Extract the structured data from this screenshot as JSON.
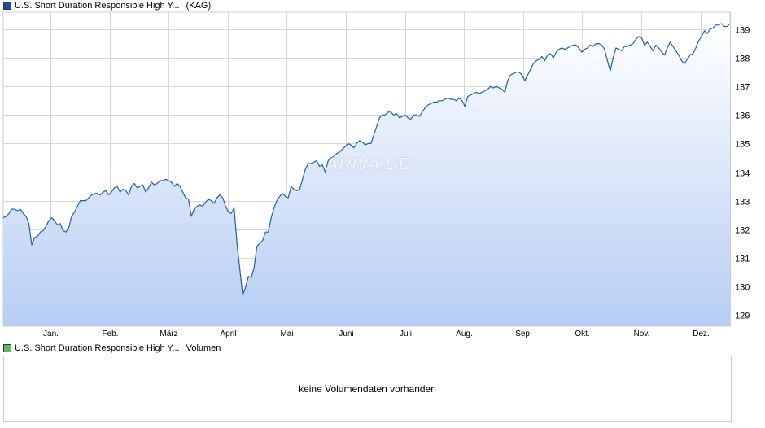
{
  "legend_price": {
    "name": "U.S. Short Duration Responsible High Y...",
    "suffix": "(KAG)",
    "color": "#1f4e9c"
  },
  "legend_volume": {
    "name": "U.S. Short Duration Responsible High Y...",
    "suffix": "Volumen",
    "color": "#5cb85c"
  },
  "volume_message": "keine Volumendaten vorhanden",
  "watermark": "ARIVA.DE",
  "colors": {
    "line": "#1f5fb0",
    "fill_top": "#ffffff",
    "fill_bottom": "#b7cdf3",
    "grid": "#d8d8d8"
  },
  "chart_data": {
    "type": "area",
    "title": "",
    "xlabel": "",
    "ylabel": "",
    "x_labels": [
      "Jan.",
      "Feb.",
      "März",
      "April",
      "Mai",
      "Juni",
      "Juli",
      "Aug.",
      "Sep.",
      "Okt.",
      "Nov.",
      "Dez."
    ],
    "y_ticks": [
      129,
      130,
      131,
      132,
      133,
      134,
      135,
      136,
      137,
      138,
      139
    ],
    "ylim": [
      128.6,
      139.6
    ],
    "grid": true,
    "y_axis_side": "right",
    "series": [
      {
        "values": [
          132.4,
          132.45,
          132.55,
          132.7,
          132.7,
          132.65,
          132.7,
          132.55,
          132.45,
          132.2,
          131.45,
          131.7,
          131.75,
          131.9,
          131.95,
          132.1,
          132.3,
          132.4,
          132.3,
          132.15,
          132.2,
          131.95,
          131.9,
          132.05,
          132.45,
          132.6,
          132.8,
          133.0,
          133.0,
          133.0,
          133.1,
          133.2,
          133.25,
          133.25,
          133.2,
          133.3,
          133.35,
          133.2,
          133.3,
          133.45,
          133.5,
          133.3,
          133.4,
          133.35,
          133.2,
          133.5,
          133.6,
          133.45,
          133.5,
          133.55,
          133.3,
          133.45,
          133.65,
          133.55,
          133.6,
          133.7,
          133.7,
          133.75,
          133.7,
          133.65,
          133.5,
          133.6,
          133.5,
          133.3,
          133.1,
          133.05,
          132.45,
          132.7,
          132.8,
          132.85,
          132.8,
          132.95,
          133.05,
          133.0,
          132.9,
          133.1,
          133.2,
          133.1,
          132.8,
          132.6,
          132.55,
          132.75,
          131.5,
          130.6,
          129.7,
          129.95,
          130.35,
          130.3,
          130.65,
          131.4,
          131.5,
          131.6,
          131.9,
          131.9,
          132.4,
          132.75,
          133.0,
          133.15,
          133.25,
          133.15,
          133.1,
          133.5,
          133.4,
          133.35,
          133.4,
          133.75,
          134.1,
          134.3,
          134.3,
          134.35,
          134.4,
          134.2,
          134.25,
          134.0,
          134.4,
          134.5,
          134.55,
          134.65,
          134.7,
          134.8,
          134.9,
          135.0,
          134.95,
          134.85,
          135.0,
          135.1,
          135.05,
          134.95,
          135.0,
          135.0,
          135.3,
          135.6,
          135.9,
          136.0,
          136.0,
          136.1,
          136.1,
          136.0,
          136.05,
          135.9,
          135.95,
          136.0,
          135.9,
          135.85,
          136.0,
          136.0,
          135.95,
          136.1,
          136.25,
          136.35,
          136.4,
          136.45,
          136.45,
          136.5,
          136.5,
          136.55,
          136.6,
          136.55,
          136.55,
          136.5,
          136.6,
          136.5,
          136.3,
          136.65,
          136.7,
          136.75,
          136.8,
          136.75,
          136.8,
          136.85,
          136.9,
          137.0,
          136.95,
          137.0,
          136.95,
          136.9,
          136.8,
          137.2,
          137.4,
          137.45,
          137.5,
          137.5,
          137.4,
          137.2,
          137.4,
          137.6,
          137.8,
          137.9,
          137.95,
          138.05,
          137.9,
          138.1,
          138.15,
          138.0,
          138.2,
          138.3,
          138.35,
          138.3,
          138.35,
          138.4,
          138.45,
          138.45,
          138.35,
          138.2,
          138.3,
          138.35,
          138.45,
          138.4,
          138.5,
          138.5,
          138.45,
          138.3,
          137.9,
          137.55,
          138.0,
          138.35,
          138.3,
          138.25,
          138.4,
          138.4,
          138.45,
          138.5,
          138.65,
          138.75,
          138.7,
          138.45,
          138.55,
          138.4,
          138.25,
          138.45,
          138.35,
          138.2,
          138.1,
          138.35,
          138.55,
          138.4,
          138.25,
          138.1,
          137.9,
          137.8,
          137.95,
          138.1,
          138.15,
          138.35,
          138.6,
          138.75,
          138.95,
          138.85,
          139.0,
          139.05,
          139.15,
          139.15,
          139.2,
          139.1,
          139.1,
          139.2
        ]
      }
    ]
  }
}
